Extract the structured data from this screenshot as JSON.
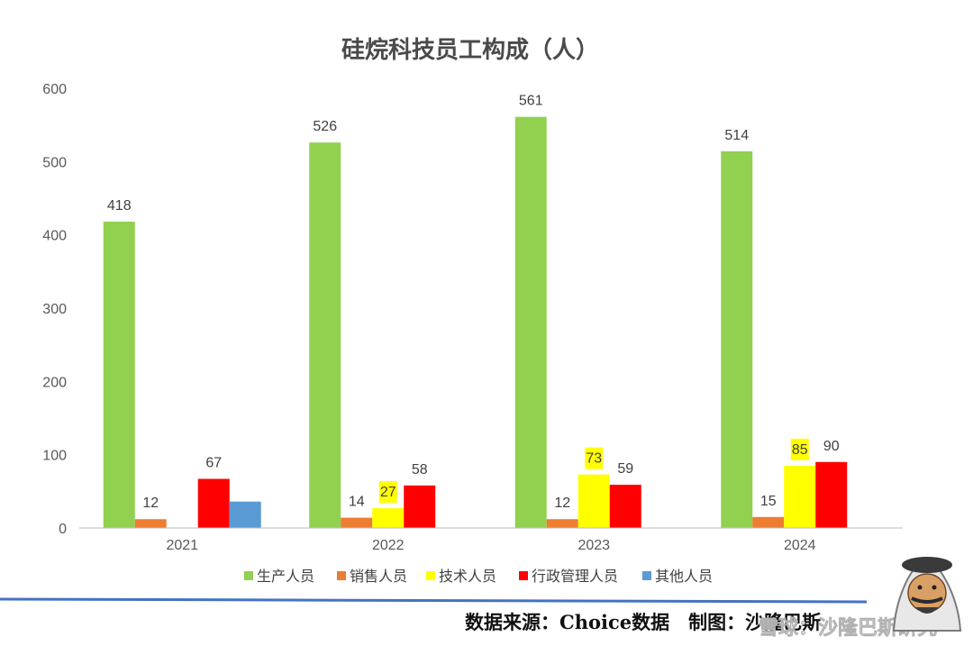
{
  "chart_data": {
    "type": "bar",
    "title": "硅烷科技员工构成（人）",
    "categories": [
      "2021",
      "2022",
      "2023",
      "2024"
    ],
    "series": [
      {
        "name": "生产人员",
        "color": "#92D050",
        "values": [
          418,
          526,
          561,
          514
        ]
      },
      {
        "name": "销售人员",
        "color": "#ED7D31",
        "values": [
          12,
          14,
          12,
          15
        ]
      },
      {
        "name": "技术人员",
        "color": "#FFFF00",
        "values": [
          null,
          27,
          73,
          85
        ]
      },
      {
        "name": "行政管理人员",
        "color": "#FF0000",
        "values": [
          67,
          58,
          59,
          90
        ]
      },
      {
        "name": "其他人员",
        "color": "#5B9BD5",
        "values": [
          36,
          null,
          null,
          null
        ]
      }
    ],
    "ylim": [
      0,
      600
    ],
    "yticks": [
      0,
      100,
      200,
      300,
      400,
      500,
      600
    ],
    "grid": false,
    "legend_position": "bottom",
    "data_labels_shown": [
      true,
      true,
      true,
      true,
      false
    ]
  },
  "footer": {
    "source": "数据来源：Choice数据　制图：沙隆巴斯",
    "watermark": "雪球：沙隆巴斯研究"
  }
}
